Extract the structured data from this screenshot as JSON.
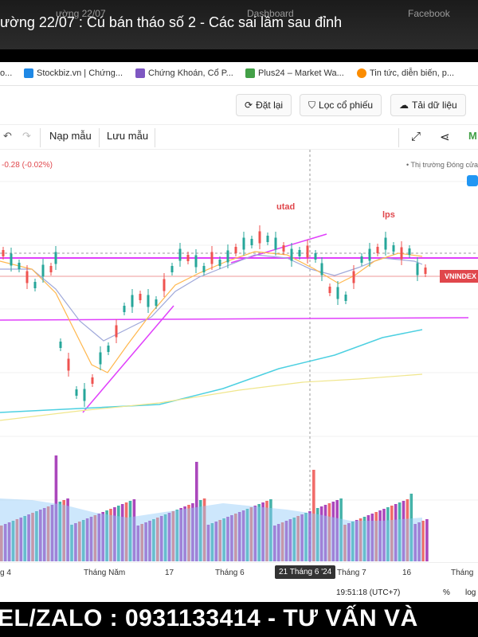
{
  "video": {
    "title": "ường 22/07 : Cú bán tháo số 2 - Các sai lầm sau đỉnh",
    "ghost_tabs": [
      "ường 22/07",
      "Dashboard",
      "Facebook"
    ]
  },
  "bookmarks": [
    {
      "label": "Stockbiz.vn | Chứng...",
      "color": "#1e88e5"
    },
    {
      "label": "Chứng Khoán, Cổ P...",
      "color": "#7e57c2"
    },
    {
      "label": "Plus24 – Market Wa...",
      "color": "#43a047"
    },
    {
      "label": "Tin tức, diễn biến, p...",
      "color": "#fb8c00"
    }
  ],
  "actions": {
    "reset": "Đặt lại",
    "filter": "Lọc cổ phiếu",
    "download": "Tải dữ liệu"
  },
  "toolbar": {
    "load_template": "Nạp mẫu",
    "save_template": "Lưu mẫu",
    "brand": "M"
  },
  "chart": {
    "change": "-0.28 (-0.02%)",
    "market_status": "• Thị trường Đóng cửa",
    "symbol_tag": "VNINDEX",
    "annotations": [
      "utad",
      "lps"
    ],
    "colors": {
      "up": "#26a69a",
      "down": "#ef5350",
      "purple": "#9c27b0",
      "teal": "#4dd0e1",
      "orange": "#ffb74d",
      "yellow": "#fff59d"
    }
  },
  "time_axis": {
    "ticks": [
      "g 4",
      "Tháng Năm",
      "17",
      "Tháng 6",
      "Tháng 7",
      "16",
      "Tháng"
    ],
    "crosshair": "21 Tháng 6 '24"
  },
  "status": {
    "clock": "19:51:18 (UTC+7)",
    "percent": "%",
    "log": "log"
  },
  "ticker": {
    "text": "EL/ZALO : 0931133414 - TƯ VẤN VÀ"
  }
}
